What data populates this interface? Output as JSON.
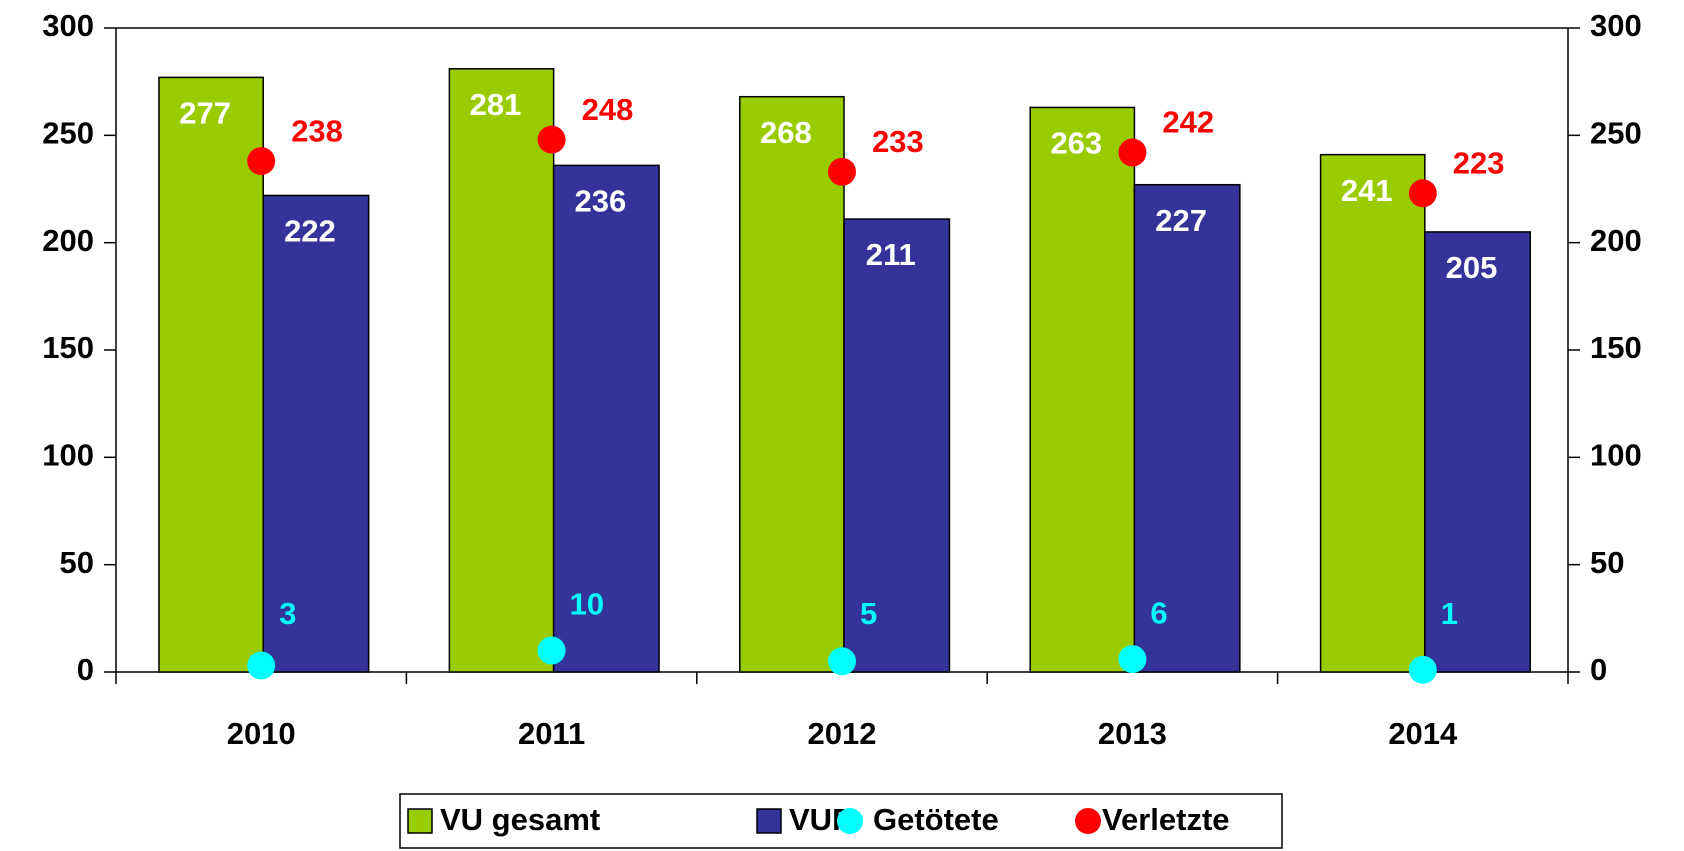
{
  "chart_data": {
    "type": "bar",
    "categories": [
      "2010",
      "2011",
      "2012",
      "2013",
      "2014"
    ],
    "series": [
      {
        "name": "VU gesamt",
        "color": "#99cc00",
        "type": "bar",
        "values": [
          277,
          281,
          268,
          263,
          241
        ]
      },
      {
        "name": "VUP",
        "color": "#333399",
        "type": "bar",
        "values": [
          222,
          236,
          211,
          227,
          205
        ]
      },
      {
        "name": "Getötete",
        "color": "#00ffff",
        "type": "scatter",
        "axis": "y2",
        "values": [
          3,
          10,
          5,
          6,
          1
        ]
      },
      {
        "name": "Verletzte",
        "color": "#ff0000",
        "type": "scatter",
        "axis": "y2",
        "values": [
          238,
          248,
          233,
          242,
          223
        ]
      }
    ],
    "ylim": [
      0,
      300
    ],
    "yticks": [
      0,
      50,
      100,
      150,
      200,
      250,
      300
    ],
    "y2lim": [
      0,
      300
    ],
    "y2ticks": [
      0,
      50,
      100,
      150,
      200,
      250,
      300
    ],
    "legend": "bottom"
  }
}
